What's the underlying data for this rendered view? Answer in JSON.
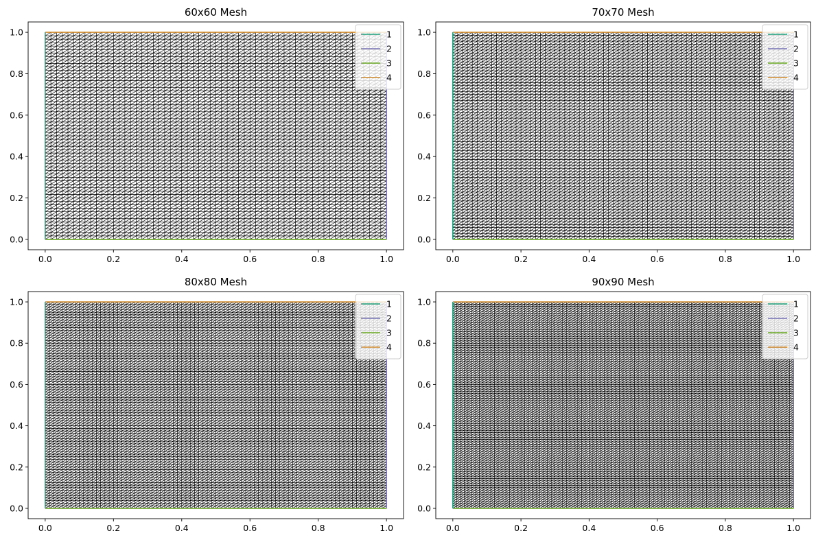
{
  "chart_data": [
    {
      "type": "mesh",
      "title": "60x60 Mesh",
      "mesh": {
        "nx": 60,
        "ny": 60,
        "element": "triangle"
      },
      "xlim": [
        -0.05,
        1.05
      ],
      "ylim": [
        -0.05,
        1.05
      ],
      "xticks": [
        0.0,
        0.2,
        0.4,
        0.6,
        0.8,
        1.0
      ],
      "xtick_labels": [
        "0.0",
        "0.2",
        "0.4",
        "0.6",
        "0.8",
        "1.0"
      ],
      "yticks": [
        0.0,
        0.2,
        0.4,
        0.6,
        0.8,
        1.0
      ],
      "ytick_labels": [
        "0.0",
        "0.2",
        "0.4",
        "0.6",
        "0.8",
        "1.0"
      ],
      "grid": false,
      "legend_position": "top-right",
      "boundaries": [
        {
          "name": "1",
          "color": "#1b9e77",
          "points": [
            [
              0,
              0
            ],
            [
              0,
              1
            ]
          ]
        },
        {
          "name": "2",
          "color": "#7570b3",
          "points": [
            [
              1,
              0
            ],
            [
              1,
              1
            ]
          ]
        },
        {
          "name": "3",
          "color": "#66a61e",
          "points": [
            [
              0,
              0
            ],
            [
              1,
              0
            ]
          ]
        },
        {
          "name": "4",
          "color": "#d08a2c",
          "points": [
            [
              0,
              1
            ],
            [
              1,
              1
            ]
          ]
        }
      ]
    },
    {
      "type": "mesh",
      "title": "70x70 Mesh",
      "mesh": {
        "nx": 70,
        "ny": 70,
        "element": "triangle"
      },
      "xlim": [
        -0.05,
        1.05
      ],
      "ylim": [
        -0.05,
        1.05
      ],
      "xticks": [
        0.0,
        0.2,
        0.4,
        0.6,
        0.8,
        1.0
      ],
      "xtick_labels": [
        "0.0",
        "0.2",
        "0.4",
        "0.6",
        "0.8",
        "1.0"
      ],
      "yticks": [
        0.0,
        0.2,
        0.4,
        0.6,
        0.8,
        1.0
      ],
      "ytick_labels": [
        "0.0",
        "0.2",
        "0.4",
        "0.6",
        "0.8",
        "1.0"
      ],
      "grid": false,
      "legend_position": "top-right",
      "boundaries": [
        {
          "name": "1",
          "color": "#1b9e77",
          "points": [
            [
              0,
              0
            ],
            [
              0,
              1
            ]
          ]
        },
        {
          "name": "2",
          "color": "#7570b3",
          "points": [
            [
              1,
              0
            ],
            [
              1,
              1
            ]
          ]
        },
        {
          "name": "3",
          "color": "#66a61e",
          "points": [
            [
              0,
              0
            ],
            [
              1,
              0
            ]
          ]
        },
        {
          "name": "4",
          "color": "#d08a2c",
          "points": [
            [
              0,
              1
            ],
            [
              1,
              1
            ]
          ]
        }
      ]
    },
    {
      "type": "mesh",
      "title": "80x80 Mesh",
      "mesh": {
        "nx": 80,
        "ny": 80,
        "element": "triangle"
      },
      "xlim": [
        -0.05,
        1.05
      ],
      "ylim": [
        -0.05,
        1.05
      ],
      "xticks": [
        0.0,
        0.2,
        0.4,
        0.6,
        0.8,
        1.0
      ],
      "xtick_labels": [
        "0.0",
        "0.2",
        "0.4",
        "0.6",
        "0.8",
        "1.0"
      ],
      "yticks": [
        0.0,
        0.2,
        0.4,
        0.6,
        0.8,
        1.0
      ],
      "ytick_labels": [
        "0.0",
        "0.2",
        "0.4",
        "0.6",
        "0.8",
        "1.0"
      ],
      "grid": false,
      "legend_position": "top-right",
      "boundaries": [
        {
          "name": "1",
          "color": "#1b9e77",
          "points": [
            [
              0,
              0
            ],
            [
              0,
              1
            ]
          ]
        },
        {
          "name": "2",
          "color": "#7570b3",
          "points": [
            [
              1,
              0
            ],
            [
              1,
              1
            ]
          ]
        },
        {
          "name": "3",
          "color": "#66a61e",
          "points": [
            [
              0,
              0
            ],
            [
              1,
              0
            ]
          ]
        },
        {
          "name": "4",
          "color": "#d08a2c",
          "points": [
            [
              0,
              1
            ],
            [
              1,
              1
            ]
          ]
        }
      ]
    },
    {
      "type": "mesh",
      "title": "90x90 Mesh",
      "mesh": {
        "nx": 90,
        "ny": 90,
        "element": "triangle"
      },
      "xlim": [
        -0.05,
        1.05
      ],
      "ylim": [
        -0.05,
        1.05
      ],
      "xticks": [
        0.0,
        0.2,
        0.4,
        0.6,
        0.8,
        1.0
      ],
      "xtick_labels": [
        "0.0",
        "0.2",
        "0.4",
        "0.6",
        "0.8",
        "1.0"
      ],
      "yticks": [
        0.0,
        0.2,
        0.4,
        0.6,
        0.8,
        1.0
      ],
      "ytick_labels": [
        "0.0",
        "0.2",
        "0.4",
        "0.6",
        "0.8",
        "1.0"
      ],
      "grid": false,
      "legend_position": "top-right",
      "boundaries": [
        {
          "name": "1",
          "color": "#1b9e77",
          "points": [
            [
              0,
              0
            ],
            [
              0,
              1
            ]
          ]
        },
        {
          "name": "2",
          "color": "#7570b3",
          "points": [
            [
              1,
              0
            ],
            [
              1,
              1
            ]
          ]
        },
        {
          "name": "3",
          "color": "#66a61e",
          "points": [
            [
              0,
              0
            ],
            [
              1,
              0
            ]
          ]
        },
        {
          "name": "4",
          "color": "#d08a2c",
          "points": [
            [
              0,
              1
            ],
            [
              1,
              1
            ]
          ]
        }
      ]
    }
  ]
}
